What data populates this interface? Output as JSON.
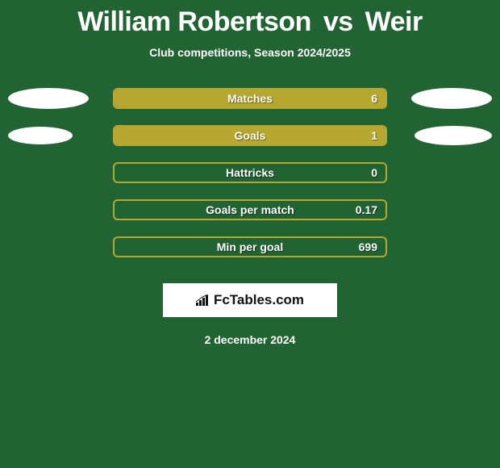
{
  "title": {
    "player1": "William Robertson",
    "vs": "vs",
    "player2": "Weir"
  },
  "subtitle": "Club competitions, Season 2024/2025",
  "colors": {
    "bar_border": "#b5a72f",
    "bar_fill": "#b5a72f",
    "background": "#226333",
    "ellipse": "#ffffff",
    "text": "#ffffff"
  },
  "ellipse_sizes": {
    "row0": {
      "left_w": 100,
      "left_h": 26,
      "right_w": 100,
      "right_h": 26
    },
    "row1": {
      "left_w": 80,
      "left_h": 22,
      "right_w": 96,
      "right_h": 24
    }
  },
  "rows": [
    {
      "label": "Matches",
      "value": "6",
      "fill_pct": 100,
      "show_ellipses": true,
      "ellipse_key": "row0"
    },
    {
      "label": "Goals",
      "value": "1",
      "fill_pct": 100,
      "show_ellipses": true,
      "ellipse_key": "row1"
    },
    {
      "label": "Hattricks",
      "value": "0",
      "fill_pct": 0,
      "show_ellipses": false
    },
    {
      "label": "Goals per match",
      "value": "0.17",
      "fill_pct": 0,
      "show_ellipses": false
    },
    {
      "label": "Min per goal",
      "value": "699",
      "fill_pct": 0,
      "show_ellipses": false
    }
  ],
  "brand": {
    "text": "FcTables.com"
  },
  "date": "2 december 2024"
}
